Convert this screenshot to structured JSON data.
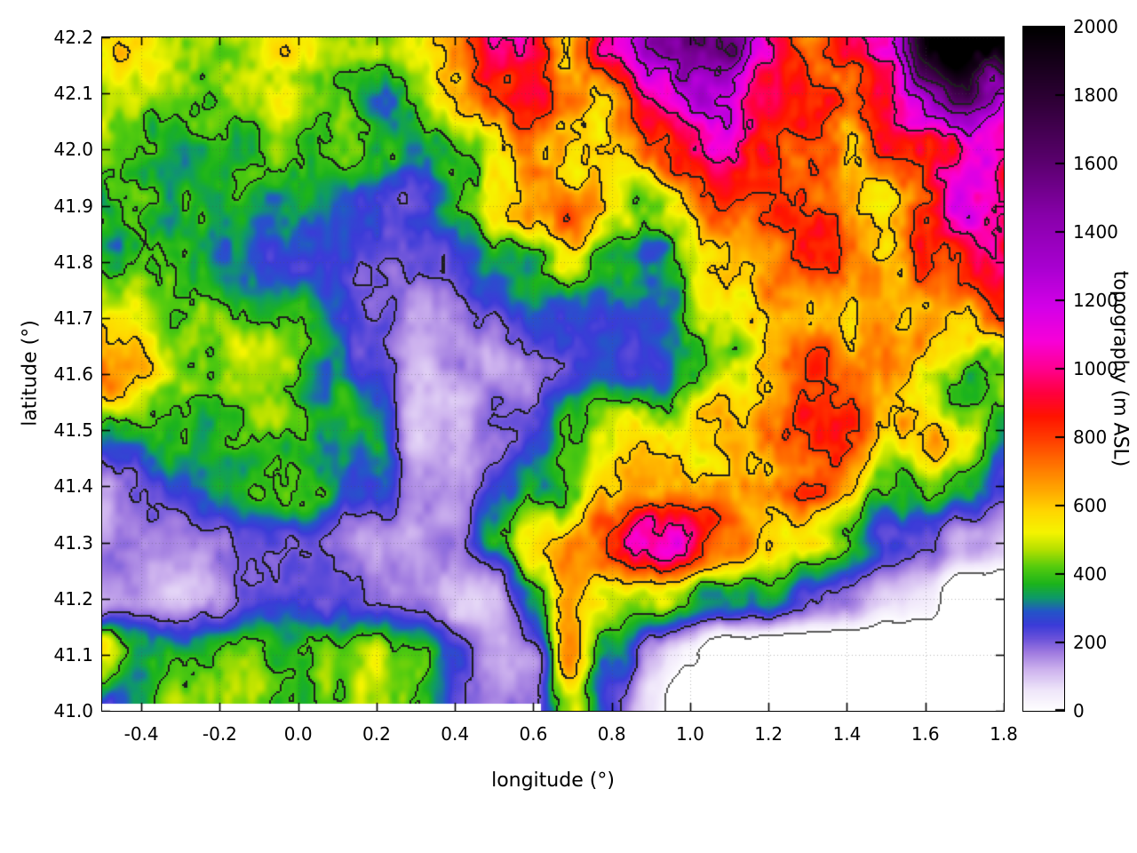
{
  "figure": {
    "background": "#ffffff"
  },
  "chart_data": {
    "type": "heatmap",
    "title": "",
    "xlabel": "longitude (°)",
    "ylabel": "latitude (°)",
    "colorbar_label": "topography (m ASL)",
    "x_range": [
      -0.5,
      1.8
    ],
    "y_range": [
      41.0,
      42.2
    ],
    "cb_range": [
      0,
      2000
    ],
    "x_tick_values": [
      -0.4,
      -0.2,
      0.0,
      0.2,
      0.4,
      0.6,
      0.8,
      1.0,
      1.2,
      1.4,
      1.6,
      1.8
    ],
    "x_tick_labels": [
      "-0.4",
      "-0.2",
      "0.0",
      "0.2",
      "0.4",
      "0.6",
      "0.8",
      "1.0",
      "1.2",
      "1.4",
      "1.6",
      "1.8"
    ],
    "y_tick_values": [
      41.0,
      41.1,
      41.2,
      41.3,
      41.4,
      41.5,
      41.6,
      41.7,
      41.8,
      41.9,
      42.0,
      42.1,
      42.2
    ],
    "y_tick_labels": [
      "41.0",
      "41.1",
      "41.2",
      "41.3",
      "41.4",
      "41.5",
      "41.6",
      "41.7",
      "41.8",
      "41.9",
      "42.0",
      "42.1",
      "42.2"
    ],
    "cb_tick_values": [
      0,
      200,
      400,
      600,
      800,
      1000,
      1200,
      1400,
      1600,
      1800,
      2000
    ],
    "cb_tick_labels": [
      "0",
      "200",
      "400",
      "600",
      "800",
      "1000",
      "1200",
      "1400",
      "1600",
      "1800",
      "2000"
    ],
    "grid_lines": true,
    "grid_color": "rgba(80,80,80,0.40)",
    "contour_interval": 200,
    "contour_levels": [
      200,
      400,
      600,
      800,
      1000,
      1200,
      1400,
      1600,
      1800
    ],
    "contour_color": "#1e1e1e",
    "coast_level": 0,
    "coast_color": "#5a5a5a",
    "sea_color": "#ffffff",
    "palette": [
      [
        0,
        "#ffffff"
      ],
      [
        60,
        "#efe6fa"
      ],
      [
        120,
        "#cdb2ee"
      ],
      [
        170,
        "#9f7ae0"
      ],
      [
        210,
        "#6a52da"
      ],
      [
        250,
        "#3b3bd8"
      ],
      [
        290,
        "#2456c8"
      ],
      [
        330,
        "#0e9a68"
      ],
      [
        370,
        "#1cb41c"
      ],
      [
        420,
        "#55cc0e"
      ],
      [
        470,
        "#b4e000"
      ],
      [
        520,
        "#f5f500"
      ],
      [
        580,
        "#ffd800"
      ],
      [
        650,
        "#ffa400"
      ],
      [
        720,
        "#ff7200"
      ],
      [
        790,
        "#ff4000"
      ],
      [
        860,
        "#ff1400"
      ],
      [
        930,
        "#ff0040"
      ],
      [
        1000,
        "#ff0090"
      ],
      [
        1080,
        "#f800d8"
      ],
      [
        1180,
        "#d400e8"
      ],
      [
        1300,
        "#a800d0"
      ],
      [
        1450,
        "#8800aa"
      ],
      [
        1600,
        "#5c0070"
      ],
      [
        1780,
        "#300038"
      ],
      [
        2000,
        "#000000"
      ]
    ],
    "elevation_grid": {
      "note": "approximate elevation control grid in m ASL read from the map; -100 = sea (rendered white below 0)",
      "lon_start": -0.5,
      "lon_step": 0.1,
      "lat_start": 42.2,
      "lat_step": -0.1,
      "values": [
        [
          500,
          470,
          440,
          470,
          500,
          510,
          470,
          460,
          520,
          700,
          950,
          1000,
          800,
          950,
          1150,
          1250,
          1300,
          900,
          750,
          950,
          1350,
          1750,
          1950,
          2000
        ],
        [
          480,
          450,
          430,
          430,
          460,
          490,
          450,
          430,
          470,
          650,
          850,
          950,
          800,
          750,
          1000,
          1100,
          1050,
          850,
          800,
          850,
          1050,
          1400,
          1600,
          1500
        ],
        [
          460,
          430,
          390,
          370,
          380,
          440,
          420,
          410,
          450,
          550,
          700,
          820,
          850,
          700,
          820,
          900,
          950,
          850,
          750,
          780,
          900,
          1100,
          1300,
          1150
        ],
        [
          450,
          420,
          380,
          340,
          350,
          390,
          340,
          310,
          330,
          400,
          500,
          680,
          750,
          600,
          550,
          600,
          650,
          680,
          700,
          740,
          800,
          900,
          1000,
          900
        ],
        [
          470,
          440,
          400,
          380,
          350,
          320,
          280,
          240,
          230,
          260,
          300,
          340,
          390,
          380,
          420,
          490,
          540,
          600,
          650,
          700,
          740,
          790,
          750,
          780
        ],
        [
          650,
          520,
          450,
          420,
          395,
          350,
          300,
          220,
          185,
          200,
          220,
          245,
          230,
          290,
          340,
          440,
          500,
          550,
          600,
          640,
          690,
          640,
          590,
          680
        ],
        [
          680,
          560,
          480,
          420,
          380,
          350,
          320,
          250,
          155,
          185,
          200,
          185,
          205,
          250,
          300,
          390,
          490,
          590,
          690,
          740,
          690,
          520,
          440,
          410
        ],
        [
          380,
          390,
          400,
          380,
          395,
          380,
          350,
          300,
          125,
          150,
          185,
          250,
          340,
          440,
          500,
          550,
          600,
          700,
          790,
          830,
          780,
          690,
          480,
          300
        ],
        [
          230,
          260,
          300,
          340,
          375,
          350,
          300,
          250,
          135,
          120,
          200,
          300,
          400,
          500,
          545,
          590,
          640,
          610,
          690,
          740,
          590,
          440,
          300,
          250
        ],
        [
          160,
          185,
          155,
          180,
          200,
          185,
          155,
          125,
          105,
          150,
          300,
          450,
          550,
          780,
          930,
          880,
          690,
          500,
          400,
          350,
          250,
          180,
          120,
          80
        ],
        [
          125,
          150,
          135,
          150,
          180,
          200,
          185,
          150,
          130,
          105,
          85,
          300,
          490,
          440,
          395,
          345,
          295,
          245,
          155,
          105,
          55,
          25,
          -100,
          -100
        ],
        [
          550,
          420,
          395,
          375,
          345,
          300,
          350,
          395,
          300,
          200,
          105,
          150,
          550,
          300,
          105,
          30,
          -100,
          -100,
          -100,
          -100,
          -100,
          -100,
          -100,
          -100
        ],
        [
          450,
          400,
          445,
          395,
          345,
          320,
          375,
          445,
          345,
          245,
          150,
          200,
          500,
          200,
          55,
          -100,
          -100,
          -100,
          -100,
          -100,
          -100,
          -100,
          -100,
          -100
        ]
      ]
    }
  }
}
